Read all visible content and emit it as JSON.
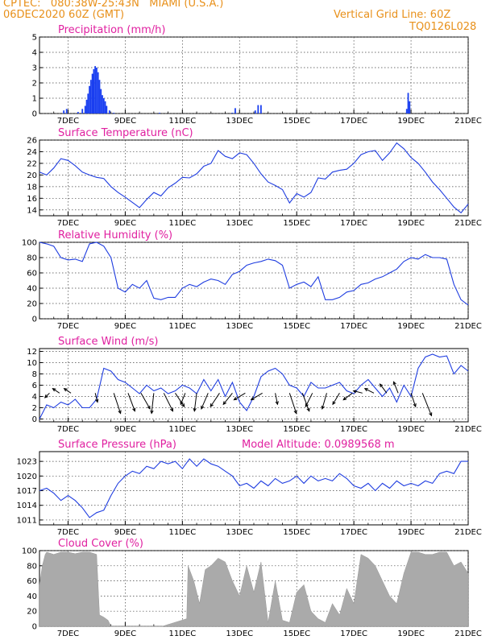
{
  "header": {
    "line1": "CPTEC:   080:38W-25:43N   MIAMI (U.S.A.)",
    "line2": "06DEC2020 60Z (GMT)",
    "grid_note": "Vertical Grid Line: 60Z",
    "code": "TQ0126L028"
  },
  "colors": {
    "header": "#e8901a",
    "title": "#e020a0",
    "series": "#1f3de0",
    "cloud": "#aaaaaa",
    "precip": "#1a3ff0"
  },
  "chart_data": [
    {
      "id": "precip",
      "type": "bar",
      "title": "Precipitation (mm/h)",
      "xlabel": "",
      "ylabel": "",
      "ylim": [
        0,
        5
      ],
      "yticks": [
        0,
        1,
        2,
        3,
        4,
        5
      ],
      "xlim": [
        0,
        15
      ],
      "xtick_labels": [
        "7DEC",
        "9DEC",
        "11DEC",
        "13DEC",
        "15DEC",
        "17DEC",
        "19DEC",
        "21DEC"
      ],
      "grid": true,
      "x": [
        0.85,
        0.95,
        1.35,
        1.5,
        1.6,
        1.65,
        1.7,
        1.75,
        1.8,
        1.85,
        1.9,
        1.95,
        2.0,
        2.05,
        2.1,
        2.15,
        2.2,
        2.25,
        2.3,
        2.35,
        2.45,
        2.6,
        4.2,
        6.75,
        6.85,
        7.55,
        7.65,
        7.75,
        12.85,
        12.9,
        12.95
      ],
      "values": [
        0.2,
        0.3,
        0.1,
        0.3,
        0.5,
        0.9,
        1.3,
        1.8,
        2.2,
        2.6,
        2.9,
        3.1,
        3.0,
        2.7,
        2.2,
        1.6,
        1.2,
        1.0,
        0.8,
        0.5,
        0.2,
        0.05,
        0.05,
        0.05,
        0.35,
        0.2,
        0.55,
        0.55,
        0.3,
        1.35,
        0.8
      ]
    },
    {
      "id": "temp",
      "type": "line",
      "title": "Surface Temperature (nC)",
      "xlabel": "",
      "ylabel": "",
      "ylim": [
        13,
        26
      ],
      "yticks": [
        14,
        16,
        18,
        20,
        22,
        24,
        26
      ],
      "xlim": [
        0,
        15
      ],
      "grid": true,
      "x": [
        0,
        0.25,
        0.5,
        0.75,
        1.0,
        1.25,
        1.5,
        1.75,
        2.0,
        2.25,
        2.5,
        2.75,
        3.0,
        3.25,
        3.5,
        3.75,
        4.0,
        4.25,
        4.5,
        4.75,
        5.0,
        5.25,
        5.5,
        5.75,
        6.0,
        6.25,
        6.5,
        6.75,
        7.0,
        7.25,
        7.5,
        7.75,
        8.0,
        8.25,
        8.5,
        8.75,
        9.0,
        9.25,
        9.5,
        9.75,
        10.0,
        10.25,
        10.5,
        10.75,
        11.0,
        11.25,
        11.5,
        11.75,
        12.0,
        12.25,
        12.5,
        12.75,
        13.0,
        13.25,
        13.5,
        13.75,
        14.0,
        14.25,
        14.5,
        14.75,
        15.0
      ],
      "y": [
        20.5,
        20.0,
        21.2,
        22.8,
        22.5,
        21.6,
        20.5,
        20.0,
        19.6,
        19.4,
        18.0,
        17.0,
        16.2,
        15.3,
        14.4,
        15.8,
        17.0,
        16.4,
        17.8,
        18.6,
        19.6,
        19.5,
        20.2,
        21.5,
        22.0,
        24.2,
        23.2,
        22.8,
        23.8,
        23.5,
        22.0,
        20.2,
        18.8,
        18.2,
        17.5,
        15.2,
        16.8,
        16.2,
        17.0,
        19.5,
        19.3,
        20.5,
        20.8,
        21.0,
        22.0,
        23.5,
        24.0,
        24.2,
        22.5,
        23.8,
        25.5,
        24.5,
        23.0,
        22.0,
        20.5,
        18.8,
        17.5,
        16.0,
        14.5,
        13.5,
        15.0
      ]
    },
    {
      "id": "rh",
      "type": "line",
      "title": "Relative Humidity (%)",
      "xlabel": "",
      "ylabel": "",
      "ylim": [
        0,
        100
      ],
      "yticks": [
        0,
        20,
        40,
        60,
        80,
        100
      ],
      "xlim": [
        0,
        15
      ],
      "grid": true,
      "x": [
        0,
        0.25,
        0.5,
        0.75,
        1.0,
        1.25,
        1.5,
        1.75,
        2.0,
        2.25,
        2.5,
        2.75,
        3.0,
        3.25,
        3.5,
        3.75,
        4.0,
        4.25,
        4.5,
        4.75,
        5.0,
        5.25,
        5.5,
        5.75,
        6.0,
        6.25,
        6.5,
        6.75,
        7.0,
        7.25,
        7.5,
        7.75,
        8.0,
        8.25,
        8.5,
        8.75,
        9.0,
        9.25,
        9.5,
        9.75,
        10.0,
        10.25,
        10.5,
        10.75,
        11.0,
        11.25,
        11.5,
        11.75,
        12.0,
        12.25,
        12.5,
        12.75,
        13.0,
        13.25,
        13.5,
        13.75,
        14.0,
        14.25,
        14.5,
        14.75,
        15.0
      ],
      "y": [
        100,
        98,
        95,
        80,
        77,
        78,
        75,
        98,
        100,
        95,
        80,
        40,
        35,
        45,
        40,
        50,
        27,
        25,
        28,
        28,
        40,
        45,
        42,
        48,
        52,
        50,
        45,
        58,
        62,
        70,
        73,
        75,
        78,
        76,
        70,
        40,
        45,
        48,
        42,
        55,
        25,
        25,
        28,
        35,
        37,
        45,
        47,
        52,
        55,
        60,
        65,
        75,
        80,
        78,
        84,
        80,
        80,
        78,
        45,
        25,
        18
      ]
    },
    {
      "id": "wind",
      "type": "line",
      "title": "Surface Wind (m/s)",
      "xlabel": "",
      "ylabel": "",
      "ylim": [
        -0.5,
        12.5
      ],
      "yticks": [
        0,
        2,
        4,
        6,
        8,
        10,
        12
      ],
      "xlim": [
        0,
        15
      ],
      "grid": true,
      "x": [
        0,
        0.25,
        0.5,
        0.75,
        1.0,
        1.25,
        1.5,
        1.75,
        2.0,
        2.25,
        2.5,
        2.75,
        3.0,
        3.25,
        3.5,
        3.75,
        4.0,
        4.25,
        4.5,
        4.75,
        5.0,
        5.25,
        5.5,
        5.75,
        6.0,
        6.25,
        6.5,
        6.75,
        7.0,
        7.25,
        7.5,
        7.75,
        8.0,
        8.25,
        8.5,
        8.75,
        9.0,
        9.25,
        9.5,
        9.75,
        10.0,
        10.25,
        10.5,
        10.75,
        11.0,
        11.25,
        11.5,
        11.75,
        12.0,
        12.25,
        12.5,
        12.75,
        13.0,
        13.25,
        13.5,
        13.75,
        14.0,
        14.25,
        14.5,
        14.75,
        15.0
      ],
      "y": [
        0,
        2.5,
        2.0,
        3.0,
        2.5,
        3.5,
        2.0,
        2.0,
        3.5,
        9.0,
        8.5,
        7.0,
        6.5,
        5.5,
        4.5,
        6.0,
        5.0,
        5.5,
        4.5,
        5.0,
        6.0,
        5.5,
        4.5,
        7.0,
        5.0,
        7.0,
        4.0,
        6.5,
        3.0,
        1.5,
        4.0,
        7.5,
        8.5,
        9.0,
        8.0,
        6.0,
        5.5,
        4.0,
        6.5,
        5.5,
        5.5,
        6.0,
        6.5,
        5.0,
        4.5,
        6.0,
        7.0,
        5.5,
        4.0,
        5.5,
        3.0,
        6.0,
        4.0,
        9.0,
        11.0,
        11.5,
        11.0,
        11.2,
        8.0,
        9.5,
        8.5
      ],
      "arrows_x": [
        0.35,
        0.7,
        1.1,
        1.95,
        2.6,
        3.1,
        3.55,
        4.0,
        4.35,
        4.75,
        5.1,
        5.5,
        5.9,
        6.3,
        6.75,
        7.2,
        7.8,
        8.25,
        8.75,
        9.2,
        9.55,
        10.05,
        10.5,
        10.95,
        11.3,
        11.7,
        12.15,
        12.55,
        13.0,
        13.4
      ],
      "arrows_u": [
        -0.2,
        -0.3,
        -0.3,
        0.1,
        0.3,
        0.3,
        0.4,
        -0.1,
        0.4,
        0.4,
        -0.2,
        -0.1,
        -0.3,
        -0.4,
        -0.4,
        -0.5,
        -0.5,
        0.1,
        0.3,
        0.3,
        -0.3,
        -0.2,
        -0.3,
        -0.4,
        -0.4,
        -0.4,
        -0.3,
        -0.2,
        0.2,
        0.4
      ],
      "arrows_v": [
        -0.2,
        0.2,
        0.2,
        -0.4,
        -0.9,
        -0.8,
        -0.7,
        -0.9,
        -0.8,
        -0.6,
        -0.5,
        -0.8,
        -0.7,
        -0.6,
        -0.5,
        -0.3,
        -0.3,
        -0.5,
        -0.9,
        -0.8,
        -0.6,
        -0.7,
        -0.5,
        -0.3,
        0.1,
        0.2,
        0.4,
        0.5,
        -0.6,
        -1.0
      ]
    },
    {
      "id": "pres",
      "type": "line",
      "title": "Surface Pressure (hPa)",
      "xlabel": "",
      "ylabel": "",
      "ylim": [
        1010,
        1025
      ],
      "yticks": [
        1011,
        1014,
        1017,
        1020,
        1023
      ],
      "xlim": [
        0,
        15
      ],
      "grid": true,
      "extra_label": "Model Altitude: 0.0989568 m",
      "x": [
        0,
        0.25,
        0.5,
        0.75,
        1.0,
        1.25,
        1.5,
        1.75,
        2.0,
        2.25,
        2.5,
        2.75,
        3.0,
        3.25,
        3.5,
        3.75,
        4.0,
        4.25,
        4.5,
        4.75,
        5.0,
        5.25,
        5.5,
        5.75,
        6.0,
        6.25,
        6.5,
        6.75,
        7.0,
        7.25,
        7.5,
        7.75,
        8.0,
        8.25,
        8.5,
        8.75,
        9.0,
        9.25,
        9.5,
        9.75,
        10.0,
        10.25,
        10.5,
        10.75,
        11.0,
        11.25,
        11.5,
        11.75,
        12.0,
        12.25,
        12.5,
        12.75,
        13.0,
        13.25,
        13.5,
        13.75,
        14.0,
        14.25,
        14.5,
        14.75,
        15.0
      ],
      "y": [
        1017,
        1017.5,
        1016.5,
        1015,
        1016,
        1015,
        1013.5,
        1011.5,
        1012.5,
        1013,
        1016,
        1018.5,
        1020,
        1021,
        1020.5,
        1022,
        1021.5,
        1023,
        1022.5,
        1023,
        1021.5,
        1023.5,
        1022,
        1023.5,
        1022.5,
        1022,
        1021,
        1020,
        1018,
        1018.5,
        1017.5,
        1019,
        1018,
        1019.5,
        1018.5,
        1019,
        1020,
        1018.5,
        1020,
        1019,
        1019.5,
        1019,
        1020.5,
        1019.5,
        1018,
        1017.5,
        1018.5,
        1017,
        1018.5,
        1017.5,
        1019,
        1018,
        1018.5,
        1018,
        1019,
        1018.5,
        1020.5,
        1021,
        1020.5,
        1023,
        1023
      ]
    },
    {
      "id": "cloud",
      "type": "area",
      "title": "Cloud Cover (%)",
      "xlabel": "",
      "ylabel": "",
      "ylim": [
        0,
        100
      ],
      "yticks": [
        0,
        20,
        40,
        60,
        80,
        100
      ],
      "xlim": [
        0,
        15
      ],
      "grid": true,
      "x": [
        0,
        0.1,
        0.2,
        0.25,
        0.5,
        0.75,
        1.0,
        1.25,
        1.5,
        1.75,
        2.0,
        2.1,
        2.25,
        2.4,
        2.5,
        4.3,
        5.15,
        5.2,
        5.4,
        5.6,
        5.8,
        6.0,
        6.25,
        6.5,
        6.75,
        7.0,
        7.25,
        7.5,
        7.75,
        8.0,
        8.25,
        8.5,
        8.75,
        9.0,
        9.25,
        9.5,
        9.75,
        10.0,
        10.25,
        10.5,
        10.75,
        11.0,
        11.25,
        11.5,
        11.75,
        12.0,
        12.25,
        12.5,
        12.75,
        13.0,
        13.25,
        13.5,
        13.75,
        14.0,
        14.25,
        14.5,
        14.75,
        15.0
      ],
      "values": [
        55,
        80,
        95,
        98,
        95,
        98,
        98,
        96,
        98,
        98,
        95,
        15,
        12,
        8,
        0,
        0,
        10,
        80,
        60,
        30,
        75,
        80,
        90,
        85,
        60,
        40,
        80,
        45,
        85,
        5,
        60,
        8,
        5,
        45,
        55,
        20,
        10,
        5,
        30,
        15,
        50,
        30,
        95,
        90,
        80,
        60,
        40,
        30,
        70,
        98,
        98,
        95,
        95,
        98,
        98,
        80,
        85,
        70
      ]
    }
  ]
}
